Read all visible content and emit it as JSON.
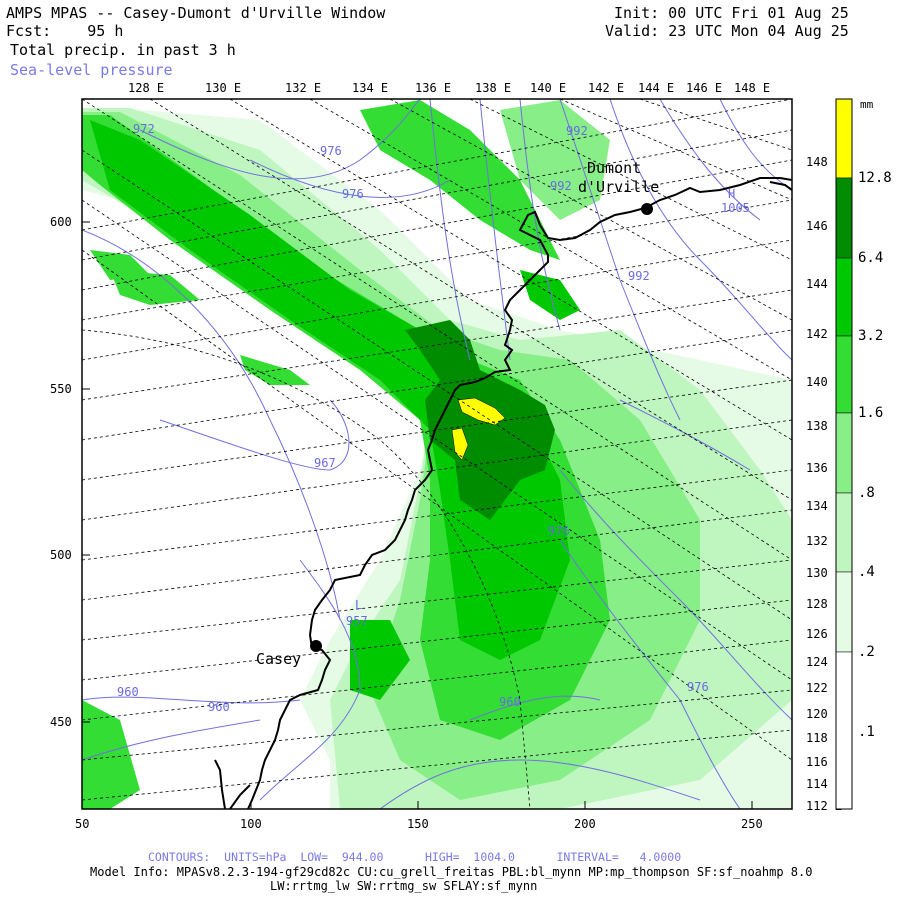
{
  "header": {
    "title": "AMPS MPAS -- Casey-Dumont d'Urville Window",
    "forecast": "Fcst:    95 h",
    "field": "Total precip. in past 3 h",
    "overlay": "Sea-level pressure",
    "init": "Init: 00 UTC Fri 01 Aug 25",
    "valid": "Valid: 23 UTC Mon 04 Aug 25"
  },
  "map": {
    "longitude_labels": [
      "128 E",
      "130 E",
      "132 E",
      "134 E",
      "136 E",
      "138 E",
      "140 E",
      "142 E",
      "144 E",
      "146 E",
      "148 E"
    ],
    "latitude_labels_right": [
      "148 E",
      "146 E",
      "144 E",
      "142 E",
      "140 E",
      "138 E",
      "136 E",
      "134 E",
      "132 E",
      "130 E",
      "128 E",
      "126 E",
      "124 E",
      "122 E",
      "120 E",
      "118 E",
      "116 E",
      "114 E",
      "112 E"
    ],
    "y_axis_labels": [
      "600",
      "550",
      "500",
      "450"
    ],
    "x_axis_labels": [
      "50",
      "100",
      "150",
      "200",
      "250"
    ],
    "stations": [
      {
        "name": "Dumont",
        "name2": "d'Urville"
      },
      {
        "name": "Casey"
      }
    ],
    "pressure_labels": [
      "972",
      "976",
      "976",
      "992",
      "992",
      "992",
      "1005",
      "H",
      "967",
      "L",
      "957",
      "976",
      "960",
      "960",
      "960",
      "976"
    ],
    "colors": {
      "ocean": "#ffffff",
      "contour": "#7070e0",
      "coast": "#000000",
      "grid": "#000000"
    }
  },
  "legend": {
    "unit": "mm",
    "levels": [
      "12.8",
      "6.4",
      "3.2",
      "1.6",
      ".8",
      ".4",
      ".2",
      ".1"
    ],
    "colors": [
      "#ffff00",
      "#008c00",
      "#00c800",
      "#33dd33",
      "#88ee88",
      "#bff5bf",
      "#e6fbe6",
      "#ffffff"
    ]
  },
  "footer": {
    "contours_line": "CONTOURS:  UNITS=hPa  LOW=  944.00      HIGH=  1004.0      INTERVAL=   4.0000",
    "model_info": "Model Info: MPASv8.2.3-194-gf29cd82c CU:cu_grell_freitas PBL:bl_mynn MP:mp_thompson SF:sf_noahmp 8.0",
    "model_info2": "LW:rrtmg_lw SW:rrtmg_sw SFLAY:sf_mynn"
  }
}
